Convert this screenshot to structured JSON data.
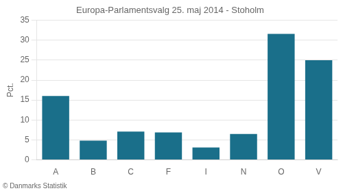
{
  "chart_data": {
    "type": "bar",
    "title": "Europa-Parlamentsvalg 25. maj 2014 - Stoholm",
    "ylabel": "Pct.",
    "footer": "© Danmarks Statistik",
    "categories": [
      "A",
      "B",
      "C",
      "F",
      "I",
      "N",
      "O",
      "V"
    ],
    "values": [
      16.0,
      4.8,
      7.1,
      6.9,
      3.1,
      6.5,
      31.6,
      25.0
    ],
    "color": "#1a6f8a",
    "ylim": [
      0,
      35
    ],
    "yticks": [
      0,
      5,
      10,
      15,
      20,
      25,
      30,
      35
    ],
    "grid": true
  }
}
